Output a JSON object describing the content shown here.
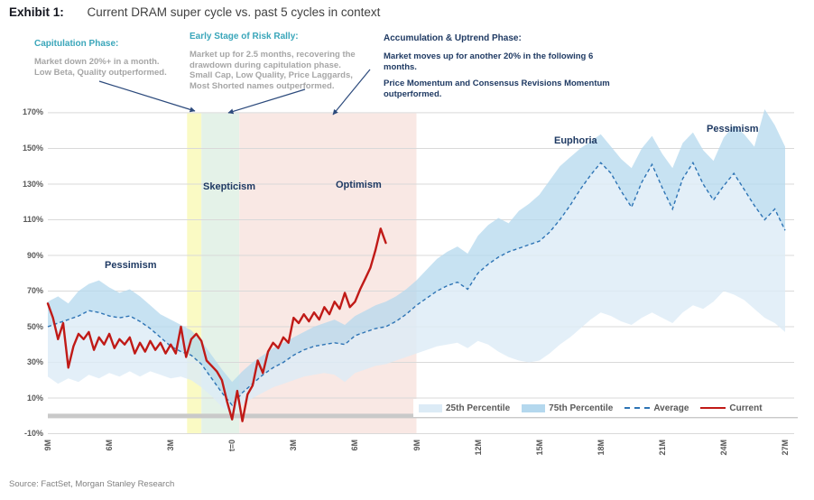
{
  "header": {
    "exhibit_label": "Exhibit 1:",
    "title": "Current DRAM super cycle vs. past 5 cycles in context"
  },
  "annotations": {
    "capitulation": {
      "heading": "Capitulation Phase:",
      "lines": [
        "Market down 20%+ in a month.",
        "Low Beta, Quality outperformed."
      ]
    },
    "risk_rally": {
      "heading": "Early Stage of Risk Rally:",
      "lines": [
        "Market up for 2.5 months, recovering the",
        "drawdown during capitulation phase.",
        "Small Cap, Low Quality, Price Laggards,",
        "Most Shorted names outperformed."
      ]
    },
    "accumulation": {
      "heading": "Accumulation & Uptrend Phase:",
      "para1_lines": [
        "Market moves up for another 20% in the following 6",
        "months."
      ],
      "para2_lines": [
        "Price Momentum and Consensus Revisions Momentum",
        "outperformed."
      ]
    }
  },
  "sentiment_labels": [
    "Pessimism",
    "Skepticism",
    "Optimism",
    "Euphoria",
    "Pessimism"
  ],
  "legend": {
    "items": [
      {
        "label": "25th Percentile",
        "swatch": "area-light"
      },
      {
        "label": "75th Percentile",
        "swatch": "area-medium"
      },
      {
        "label": "Average",
        "swatch": "dashed-line"
      },
      {
        "label": "Current",
        "swatch": "solid-line"
      }
    ]
  },
  "source": "Source: FactSet, Morgan Stanley Research",
  "colors": {
    "current_line": "#c01a17",
    "average_line": "#2e74b5",
    "band_25": "#dcebf6",
    "band_75": "#b4d8ee",
    "phase_yellow": "#fafac4",
    "phase_green": "#e4f2e8",
    "phase_pink": "#f9e8e4",
    "grid": "#d9d9d9",
    "zero_bar": "#c9c9c9",
    "arrow": "#2c4a7c",
    "teal_heading": "#3aa6ba",
    "navy_text": "#1f3a63",
    "gray_text": "#a6a6a6",
    "axis_text": "#595959"
  },
  "chart_data": {
    "type": "line",
    "title": "Current DRAM super cycle vs. past 5 cycles in context",
    "x_axis": {
      "unit": "months relative to trough (t=0)",
      "ticks": [
        "9M",
        "6M",
        "3M",
        "t=0",
        "3M",
        "6M",
        "9M",
        "12M",
        "15M",
        "18M",
        "21M",
        "24M",
        "27M"
      ],
      "tick_months": [
        -9,
        -6,
        -3,
        0,
        3,
        6,
        9,
        12,
        15,
        18,
        21,
        24,
        27
      ],
      "range_months": [
        -9,
        27
      ]
    },
    "y_axis": {
      "ticks": [
        "170%",
        "150%",
        "130%",
        "110%",
        "90%",
        "70%",
        "50%",
        "30%",
        "10%",
        "-10%"
      ],
      "range_percent": [
        -10,
        170
      ],
      "grid": true
    },
    "regions": [
      {
        "name": "capitulation",
        "from_month": -2.2,
        "to_month": -1.5,
        "color": "phase_yellow"
      },
      {
        "name": "risk-rally",
        "from_month": -1.5,
        "to_month": 0.35,
        "color": "phase_green"
      },
      {
        "name": "optimism",
        "from_month": 0.35,
        "to_month": 9.0,
        "color": "phase_pink"
      }
    ],
    "series": [
      {
        "name": "25th Percentile",
        "role": "band_lower_edge",
        "x_start": -9,
        "x_step": 0.5,
        "values": [
          22,
          18,
          21,
          19,
          23,
          21,
          24,
          22,
          25,
          22,
          25,
          23,
          21,
          22,
          20,
          16,
          11,
          5,
          1,
          6,
          10,
          13,
          16,
          18,
          20,
          22,
          23,
          24,
          23,
          19,
          24,
          26,
          28,
          29,
          31,
          33,
          35,
          37,
          39,
          40,
          41,
          38,
          42,
          40,
          36,
          33,
          31,
          30,
          31,
          35,
          40,
          44,
          49,
          54,
          58,
          56,
          53,
          51,
          55,
          58,
          55,
          52,
          58,
          62,
          60,
          64,
          70,
          68,
          65,
          60,
          55,
          52,
          47
        ]
      },
      {
        "name": "75th Percentile",
        "role": "band_upper_edge",
        "x_start": -9,
        "x_step": 0.5,
        "values": [
          64,
          67,
          63,
          70,
          74,
          76,
          72,
          69,
          71,
          67,
          62,
          57,
          54,
          51,
          48,
          42,
          34,
          26,
          19,
          25,
          30,
          34,
          38,
          41,
          44,
          47,
          50,
          52,
          54,
          51,
          56,
          59,
          62,
          64,
          67,
          71,
          76,
          82,
          88,
          92,
          95,
          91,
          101,
          107,
          111,
          108,
          115,
          119,
          124,
          132,
          140,
          145,
          150,
          154,
          158,
          151,
          144,
          139,
          150,
          157,
          147,
          139,
          153,
          159,
          149,
          143,
          156,
          163,
          158,
          151,
          172,
          163,
          151
        ]
      },
      {
        "name": "Average",
        "role": "line_dashed",
        "x_start": -9,
        "x_step": 0.5,
        "values": [
          50,
          52,
          54,
          56,
          59,
          58,
          56,
          55,
          56,
          53,
          49,
          44,
          39,
          36,
          34,
          29,
          21,
          13,
          6,
          13,
          18,
          23,
          27,
          30,
          34,
          37,
          39,
          40,
          41,
          40,
          45,
          47,
          49,
          50,
          53,
          57,
          62,
          66,
          70,
          73,
          75,
          71,
          80,
          85,
          89,
          92,
          94,
          96,
          98,
          103,
          110,
          118,
          127,
          135,
          142,
          136,
          126,
          117,
          131,
          141,
          128,
          116,
          133,
          142,
          130,
          121,
          129,
          136,
          127,
          118,
          110,
          116,
          104
        ]
      },
      {
        "name": "Current",
        "role": "line_solid",
        "x_start": -9,
        "x_step": 0.25,
        "values": [
          63,
          55,
          43,
          52,
          27,
          39,
          46,
          43,
          47,
          37,
          44,
          40,
          46,
          38,
          43,
          40,
          44,
          35,
          41,
          36,
          42,
          37,
          41,
          35,
          40,
          35,
          50,
          33,
          43,
          46,
          42,
          31,
          28,
          25,
          20,
          8,
          -2,
          14,
          -3,
          12,
          17,
          31,
          24,
          36,
          41,
          38,
          44,
          41,
          55,
          52,
          57,
          53,
          58,
          54,
          61,
          57,
          64,
          60,
          69,
          61,
          64,
          71,
          77,
          83,
          93,
          105,
          97
        ]
      }
    ]
  }
}
